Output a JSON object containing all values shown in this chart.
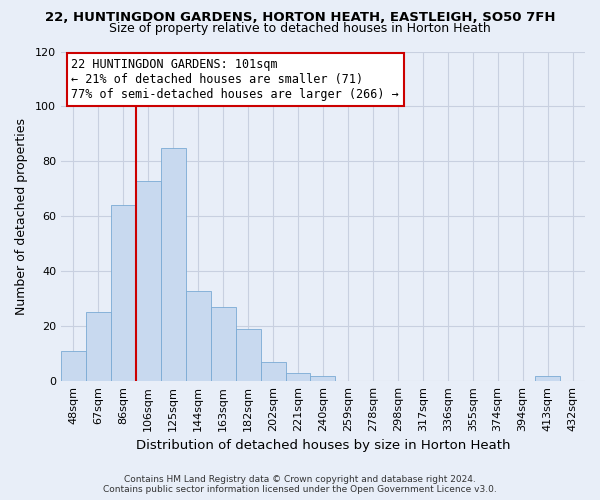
{
  "title_line1": "22, HUNTINGDON GARDENS, HORTON HEATH, EASTLEIGH, SO50 7FH",
  "title_line2": "Size of property relative to detached houses in Horton Heath",
  "xlabel": "Distribution of detached houses by size in Horton Heath",
  "ylabel": "Number of detached properties",
  "bin_labels": [
    "48sqm",
    "67sqm",
    "86sqm",
    "106sqm",
    "125sqm",
    "144sqm",
    "163sqm",
    "182sqm",
    "202sqm",
    "221sqm",
    "240sqm",
    "259sqm",
    "278sqm",
    "298sqm",
    "317sqm",
    "336sqm",
    "355sqm",
    "374sqm",
    "394sqm",
    "413sqm",
    "432sqm"
  ],
  "bar_heights": [
    11,
    25,
    64,
    73,
    85,
    33,
    27,
    19,
    7,
    3,
    2,
    0,
    0,
    0,
    0,
    0,
    0,
    0,
    0,
    2,
    0
  ],
  "bar_color": "#c8d9ef",
  "bar_edge_color": "#7aaad4",
  "vline_x_index": 3,
  "vline_color": "#cc0000",
  "ylim": [
    0,
    120
  ],
  "yticks": [
    0,
    20,
    40,
    60,
    80,
    100,
    120
  ],
  "annotation_line1": "22 HUNTINGDON GARDENS: 101sqm",
  "annotation_line2": "← 21% of detached houses are smaller (71)",
  "annotation_line3": "77% of semi-detached houses are larger (266) →",
  "footer_line1": "Contains HM Land Registry data © Crown copyright and database right 2024.",
  "footer_line2": "Contains public sector information licensed under the Open Government Licence v3.0.",
  "background_color": "#e8eef8",
  "plot_background": "#e8eef8",
  "grid_color": "#c8d0e0",
  "title_fontsize": 9.5,
  "subtitle_fontsize": 9.0,
  "xlabel_fontsize": 9.5,
  "ylabel_fontsize": 9.0,
  "tick_fontsize": 8.0,
  "annotation_fontsize": 8.5,
  "footer_fontsize": 6.5
}
